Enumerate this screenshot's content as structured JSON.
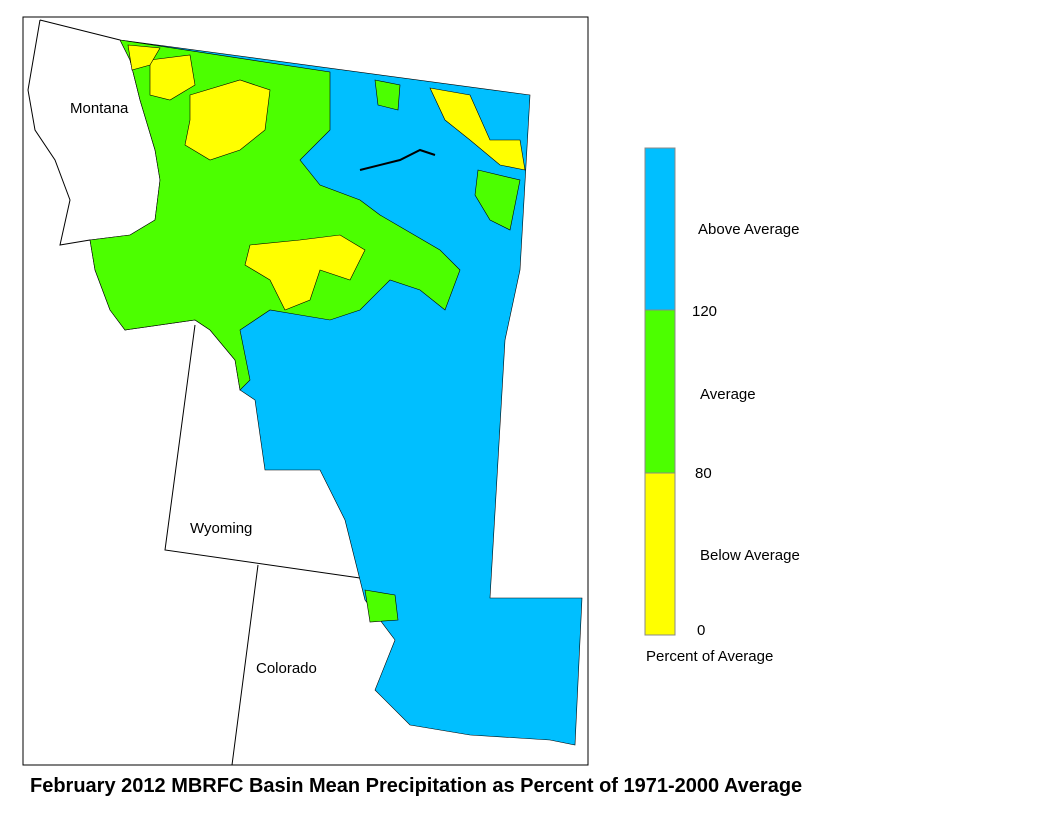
{
  "map": {
    "title": "February 2012 MBRFC Basin Mean Precipitation as Percent of 1971-2000 Average",
    "states": [
      "Montana",
      "Wyoming",
      "Colorado"
    ],
    "legend": {
      "title": "Percent of Average",
      "categories": [
        {
          "label": "Above Average",
          "color": "#00bfff"
        },
        {
          "label": "Average",
          "color": "#4cff00"
        },
        {
          "label": "Below Average",
          "color": "#ffff00"
        }
      ],
      "ticks": [
        "120",
        "80",
        "0"
      ]
    }
  }
}
